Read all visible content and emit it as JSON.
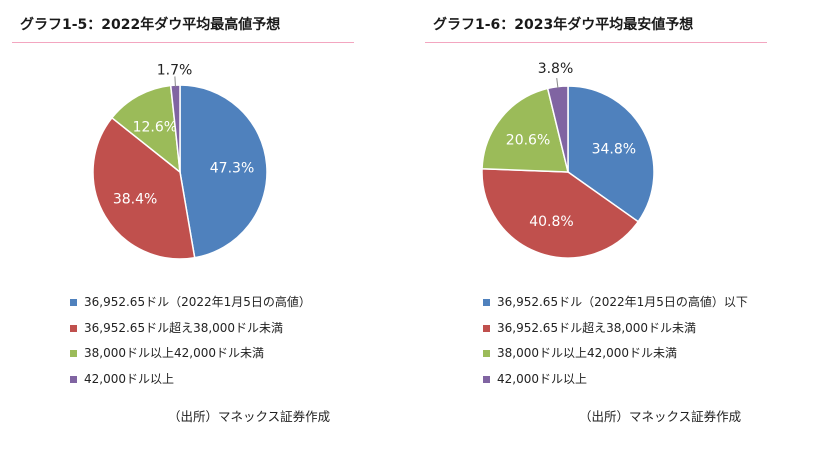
{
  "chart_data": [
    {
      "type": "pie",
      "title": "グラフ1-5：2022年ダウ平均最高値予想",
      "categories": [
        "36,952.65ドル（2022年1月5日の高値）",
        "36,952.65ドル超え38,000ドル未満",
        "38,000ドル以上42,000ドル未満",
        "42,000ドル以上"
      ],
      "values": [
        47.3,
        38.4,
        12.6,
        1.7
      ],
      "labels": [
        "47.3%",
        "38.4%",
        "12.6%",
        "1.7%"
      ],
      "colors": [
        "#4f81bd",
        "#c0504d",
        "#9bbb59",
        "#8064a2"
      ],
      "label_colors": [
        "#ffffff",
        "#ffffff",
        "#ffffff",
        "#222222"
      ],
      "legend": "bottom",
      "source": "（出所）マネックス証券作成"
    },
    {
      "type": "pie",
      "title": "グラフ1-6：2023年ダウ平均最安値予想",
      "categories": [
        "36,952.65ドル（2022年1月5日の高値）以下",
        "36,952.65ドル超え38,000ドル未満",
        "38,000ドル以上42,000ドル未満",
        "42,000ドル以上"
      ],
      "values": [
        34.8,
        40.8,
        20.6,
        3.8
      ],
      "labels": [
        "34.8%",
        "40.8%",
        "20.6%",
        "3.8%"
      ],
      "colors": [
        "#4f81bd",
        "#c0504d",
        "#9bbb59",
        "#8064a2"
      ],
      "label_colors": [
        "#ffffff",
        "#ffffff",
        "#ffffff",
        "#222222"
      ],
      "legend": "bottom",
      "source": "（出所）マネックス証券作成"
    }
  ]
}
